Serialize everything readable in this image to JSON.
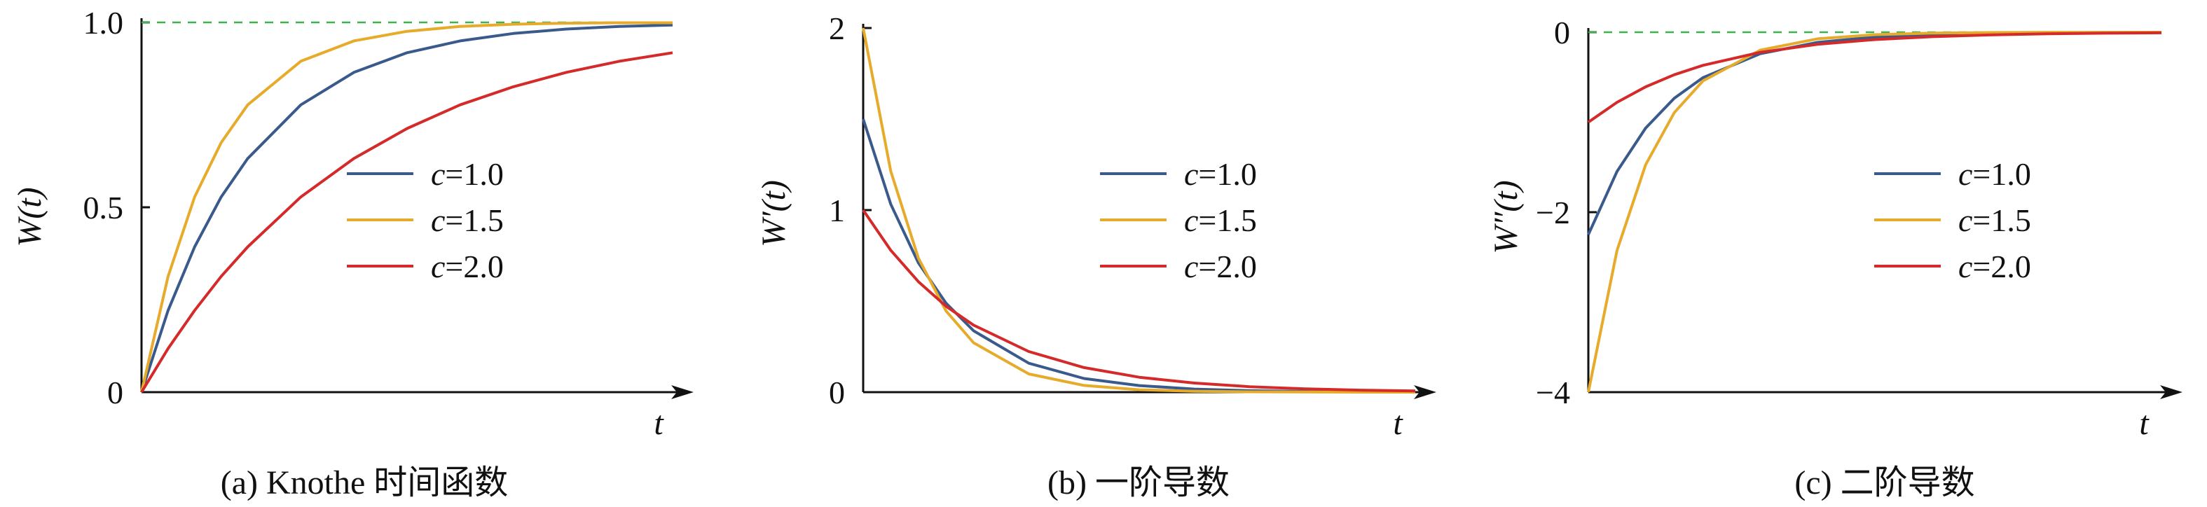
{
  "chart_data": [
    {
      "type": "line",
      "panel": "a",
      "caption": "(a) Knothe 时间函数",
      "ylabel": "W(t)",
      "xlabel": "t",
      "ylim": [
        0,
        1
      ],
      "yticks": [
        {
          "value": 0,
          "label": "0"
        },
        {
          "value": 0.5,
          "label": "0.5"
        },
        {
          "value": 1.0,
          "label": "1.0"
        }
      ],
      "reference_line": {
        "y": 1.0,
        "color": "#3cb44b",
        "style": "dashed"
      },
      "legend": {
        "position": "right-middle"
      },
      "x": [
        0,
        0.25,
        0.5,
        0.75,
        1,
        1.5,
        2,
        2.5,
        3,
        3.5,
        4,
        4.5,
        5
      ],
      "series": [
        {
          "name": "c=1.0",
          "color": "#3a5a8c",
          "values": [
            0,
            0.221,
            0.393,
            0.528,
            0.632,
            0.777,
            0.865,
            0.918,
            0.95,
            0.97,
            0.982,
            0.989,
            0.993
          ]
        },
        {
          "name": "c=1.5",
          "color": "#e6ab2b",
          "values": [
            0,
            0.313,
            0.528,
            0.675,
            0.777,
            0.895,
            0.95,
            0.976,
            0.989,
            0.995,
            0.998,
            0.999,
            0.999
          ]
        },
        {
          "name": "c=2.0",
          "color": "#d52a2a",
          "values": [
            0,
            0.118,
            0.221,
            0.313,
            0.393,
            0.528,
            0.632,
            0.713,
            0.777,
            0.826,
            0.865,
            0.895,
            0.918
          ]
        }
      ]
    },
    {
      "type": "line",
      "panel": "b",
      "caption": "(b) 一阶导数",
      "ylabel": "W′(t)",
      "xlabel": "t",
      "ylim": [
        0,
        2
      ],
      "yticks": [
        {
          "value": 0,
          "label": "0"
        },
        {
          "value": 1,
          "label": "1"
        },
        {
          "value": 2,
          "label": "2"
        }
      ],
      "legend": {
        "position": "right-middle"
      },
      "x": [
        0,
        0.25,
        0.5,
        0.75,
        1,
        1.5,
        2,
        2.5,
        3,
        3.5,
        4,
        4.5,
        5
      ],
      "series": [
        {
          "name": "c=1.0",
          "color": "#3a5a8c",
          "values": [
            1.5,
            1.032,
            0.71,
            0.489,
            0.337,
            0.159,
            0.075,
            0.036,
            0.017,
            0.008,
            0.004,
            0.002,
            0.001
          ]
        },
        {
          "name": "c=1.5",
          "color": "#e6ab2b",
          "values": [
            2.0,
            1.213,
            0.736,
            0.446,
            0.271,
            0.1,
            0.037,
            0.013,
            0.005,
            0.002,
            0.001,
            0.0,
            0.0
          ]
        },
        {
          "name": "c=2.0",
          "color": "#d52a2a",
          "values": [
            1.0,
            0.779,
            0.607,
            0.472,
            0.368,
            0.223,
            0.135,
            0.082,
            0.05,
            0.03,
            0.018,
            0.011,
            0.007
          ]
        }
      ]
    },
    {
      "type": "line",
      "panel": "c",
      "caption": "(c) 二阶导数",
      "ylabel": "W″(t)",
      "xlabel": "t",
      "ylim": [
        -4,
        0
      ],
      "yticks": [
        {
          "value": -4,
          "label": "−4"
        },
        {
          "value": -2,
          "label": "−2"
        },
        {
          "value": 0,
          "label": "0"
        }
      ],
      "reference_line": {
        "y": 0,
        "color": "#3cb44b",
        "style": "dashed"
      },
      "legend": {
        "position": "right-middle"
      },
      "x": [
        0,
        0.25,
        0.5,
        0.75,
        1,
        1.5,
        2,
        2.5,
        3,
        3.5,
        4,
        4.5,
        5
      ],
      "series": [
        {
          "name": "c=1.0",
          "color": "#3a5a8c",
          "values": [
            -2.25,
            -1.548,
            -1.065,
            -0.733,
            -0.505,
            -0.239,
            -0.113,
            -0.054,
            -0.025,
            -0.012,
            -0.006,
            -0.003,
            -0.001
          ]
        },
        {
          "name": "c=1.5",
          "color": "#e6ab2b",
          "values": [
            -4.0,
            -2.426,
            -1.472,
            -0.893,
            -0.541,
            -0.199,
            -0.073,
            -0.027,
            -0.01,
            -0.004,
            -0.001,
            -0.001,
            0.0
          ]
        },
        {
          "name": "c=2.0",
          "color": "#d52a2a",
          "values": [
            -1.0,
            -0.779,
            -0.607,
            -0.472,
            -0.368,
            -0.223,
            -0.135,
            -0.082,
            -0.05,
            -0.03,
            -0.018,
            -0.011,
            -0.007
          ]
        }
      ]
    }
  ]
}
